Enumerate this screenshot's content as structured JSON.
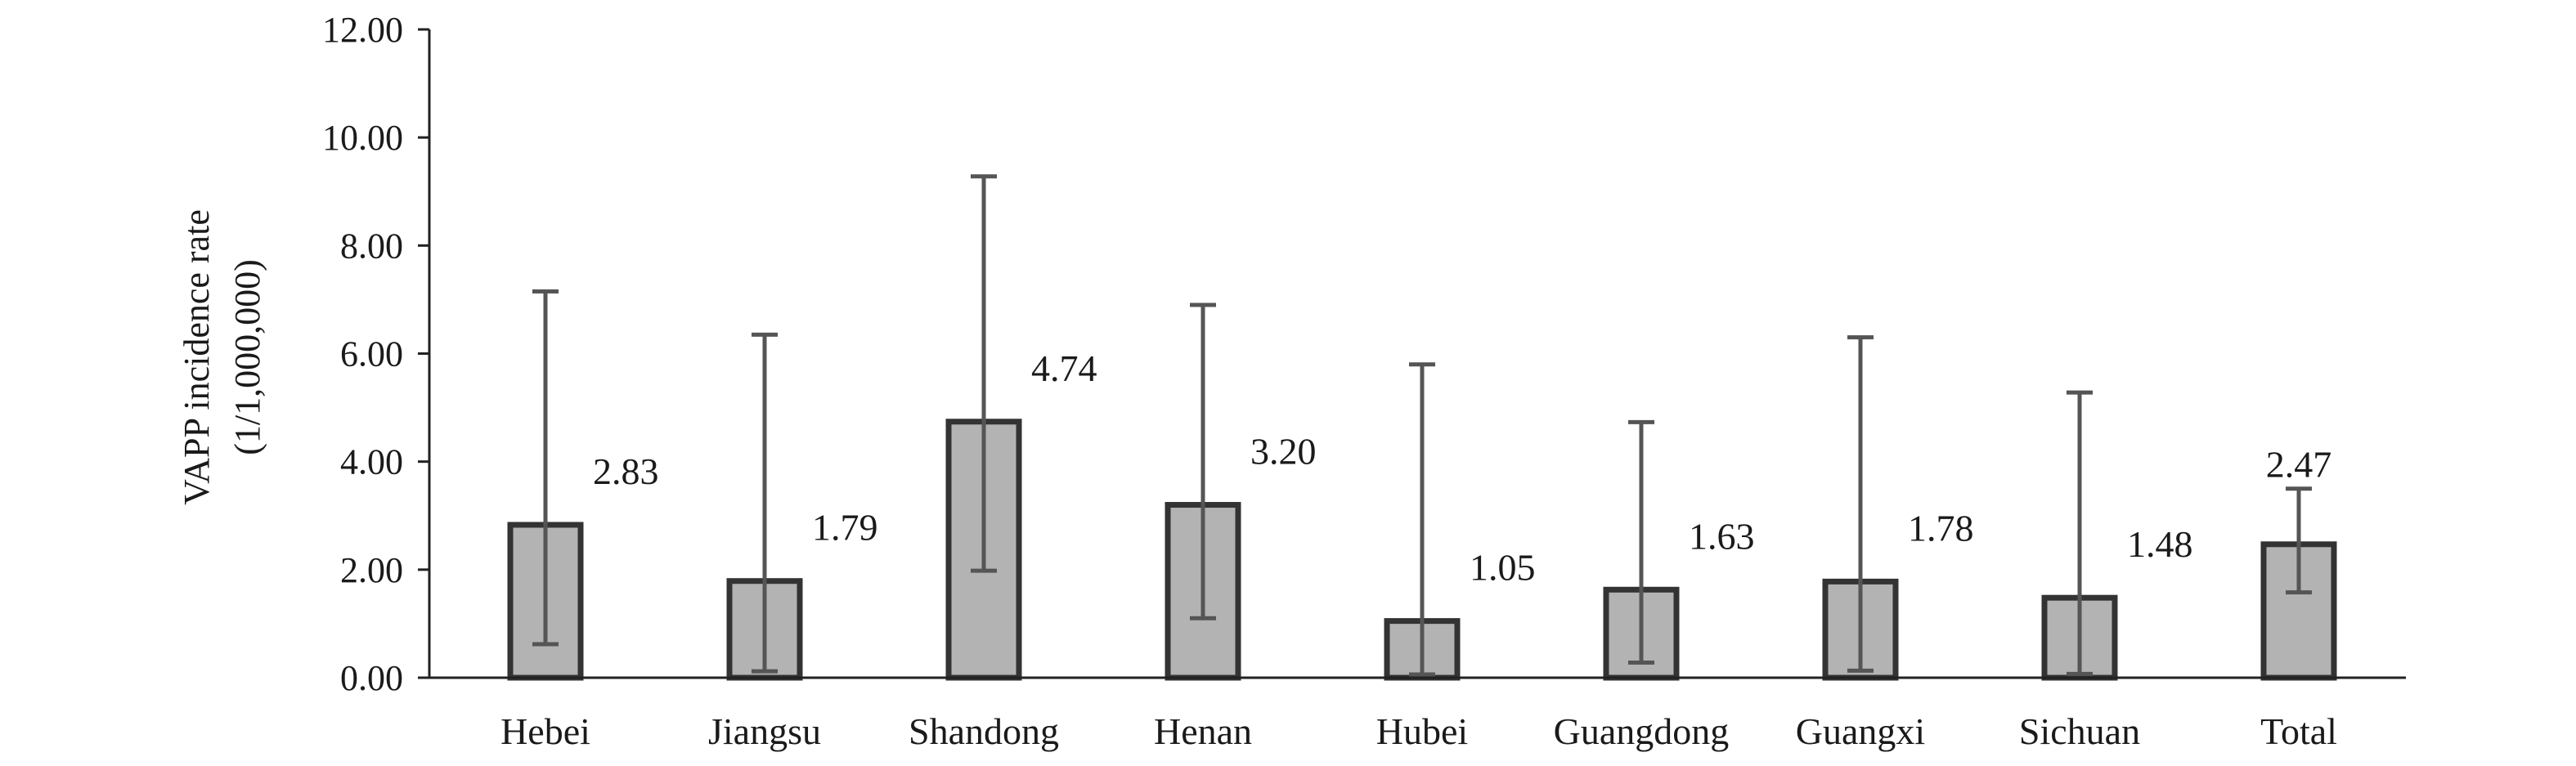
{
  "chart_data": {
    "type": "bar",
    "ylabel_line1": "VAPP incidence rate",
    "ylabel_line2": "(1/1,000,000)",
    "ylim": [
      0,
      12
    ],
    "y_ticks": [
      "0.00",
      "2.00",
      "4.00",
      "6.00",
      "8.00",
      "10.00",
      "12.00"
    ],
    "y_tick_values": [
      0,
      2,
      4,
      6,
      8,
      10,
      12
    ],
    "categories": [
      "Hebei",
      "Jiangsu",
      "Shandong",
      "Henan",
      "Hubei",
      "Guangdong",
      "Guangxi",
      "Sichuan",
      "Total"
    ],
    "values": [
      2.83,
      1.79,
      4.74,
      3.2,
      1.05,
      1.63,
      1.78,
      1.48,
      2.47
    ],
    "value_labels": [
      "2.83",
      "1.79",
      "4.74",
      "3.20",
      "1.05",
      "1.63",
      "1.78",
      "1.48",
      "2.47"
    ],
    "ci_lower": [
      0.62,
      0.12,
      1.98,
      1.1,
      0.06,
      0.28,
      0.13,
      0.07,
      1.58
    ],
    "ci_upper": [
      7.15,
      6.35,
      9.28,
      6.9,
      5.8,
      4.73,
      6.3,
      5.28,
      3.5
    ],
    "grid": false,
    "legend": "none",
    "colors": {
      "bar_fill": "#b3b3b3",
      "bar_edge": "#333333",
      "error_bar": "#555555"
    }
  }
}
